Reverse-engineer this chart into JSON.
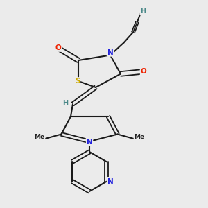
{
  "bg_color": "#ebebeb",
  "atom_colors": {
    "C": "#1a1a1a",
    "N": "#2222dd",
    "O": "#ee2200",
    "S": "#ccaa00",
    "H": "#4a8888"
  },
  "bond_color": "#1a1a1a",
  "figsize": [
    3.0,
    3.0
  ],
  "dpi": 100
}
